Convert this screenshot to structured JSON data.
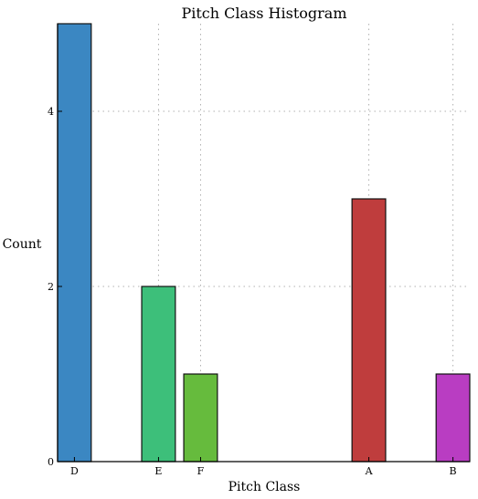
{
  "chart_data": {
    "type": "bar",
    "title": "Pitch Class Histogram",
    "xlabel": "Pitch Class",
    "ylabel": "Count",
    "ylim": [
      0,
      5
    ],
    "yticks": [
      0,
      2,
      4
    ],
    "xlim": [
      -0.4,
      9.4
    ],
    "grid": true,
    "bars": [
      {
        "label": "D",
        "x": 0,
        "value": 5,
        "color": "#3b87c2"
      },
      {
        "label": "E",
        "x": 2,
        "value": 2,
        "color": "#3dbf7a"
      },
      {
        "label": "F",
        "x": 3,
        "value": 1,
        "color": "#66bb3d"
      },
      {
        "label": "A",
        "x": 7,
        "value": 3,
        "color": "#bf3d3d"
      },
      {
        "label": "B",
        "x": 9,
        "value": 1,
        "color": "#b93dc2"
      }
    ]
  }
}
